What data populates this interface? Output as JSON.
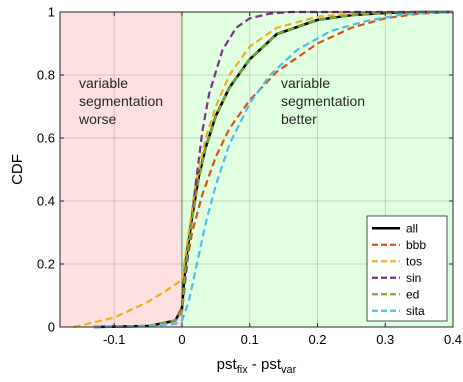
{
  "chart_data": {
    "type": "line",
    "xlabel": {
      "base1": "pst",
      "sub1": "fix",
      "sep": " - ",
      "base2": "pst",
      "sub2": "var"
    },
    "ylabel": "CDF",
    "xlim": [
      -0.18,
      0.4
    ],
    "ylim": [
      0,
      1
    ],
    "xticks": [
      {
        "value": -0.1,
        "label": "-0.1"
      },
      {
        "value": 0,
        "label": "0"
      },
      {
        "value": 0.1,
        "label": "0.1"
      },
      {
        "value": 0.2,
        "label": "0.2"
      },
      {
        "value": 0.3,
        "label": "0.3"
      },
      {
        "value": 0.4,
        "label": "0.4"
      }
    ],
    "yticks": [
      {
        "value": 0,
        "label": "0"
      },
      {
        "value": 0.2,
        "label": "0.2"
      },
      {
        "value": 0.4,
        "label": "0.4"
      },
      {
        "value": 0.6,
        "label": "0.6"
      },
      {
        "value": 0.8,
        "label": "0.8"
      },
      {
        "value": 1,
        "label": "1"
      }
    ],
    "grid": true,
    "legend_position": "bottom-right",
    "regions": [
      {
        "x0": -0.18,
        "x1": 0,
        "color": "#ffe0e0",
        "edge": "#c05050",
        "label": [
          "variable",
          "segmentation",
          "worse"
        ],
        "anchor": "left"
      },
      {
        "x0": 0,
        "x1": 0.4,
        "color": "#e0ffe0",
        "edge": "#60b060",
        "label": [
          "variable",
          "segmentation",
          "better"
        ],
        "anchor": "right"
      }
    ],
    "series": [
      {
        "name": "all",
        "color": "#000000",
        "dash": "solid",
        "x": [
          -0.13,
          -0.05,
          -0.01,
          0.0,
          0.005,
          0.015,
          0.025,
          0.035,
          0.05,
          0.07,
          0.1,
          0.14,
          0.2,
          0.25,
          0.3,
          0.35,
          0.4
        ],
        "y": [
          0,
          0.003,
          0.02,
          0.06,
          0.2,
          0.35,
          0.48,
          0.57,
          0.67,
          0.76,
          0.85,
          0.93,
          0.975,
          0.99,
          0.997,
          1,
          1
        ]
      },
      {
        "name": "bbb",
        "color": "#d95319",
        "dash": "dashed",
        "x": [
          -0.13,
          -0.05,
          -0.01,
          0.0,
          0.005,
          0.015,
          0.03,
          0.05,
          0.07,
          0.1,
          0.14,
          0.2,
          0.25,
          0.3,
          0.35,
          0.4
        ],
        "y": [
          0,
          0.003,
          0.02,
          0.06,
          0.18,
          0.3,
          0.42,
          0.54,
          0.63,
          0.72,
          0.81,
          0.9,
          0.95,
          0.98,
          0.995,
          1
        ]
      },
      {
        "name": "tos",
        "color": "#edb120",
        "dash": "dashed",
        "x": [
          -0.16,
          -0.1,
          -0.05,
          -0.02,
          0.0,
          0.01,
          0.02,
          0.035,
          0.05,
          0.07,
          0.1,
          0.14,
          0.2,
          0.25,
          0.3,
          0.4
        ],
        "y": [
          0,
          0.03,
          0.08,
          0.12,
          0.15,
          0.3,
          0.45,
          0.6,
          0.7,
          0.8,
          0.89,
          0.95,
          0.985,
          0.995,
          1,
          1
        ]
      },
      {
        "name": "sin",
        "color": "#7e2f8e",
        "dash": "dashed",
        "x": [
          -0.13,
          -0.05,
          -0.01,
          0.0,
          0.01,
          0.02,
          0.03,
          0.04,
          0.06,
          0.08,
          0.1,
          0.13,
          0.16,
          0.2,
          0.25,
          0.4
        ],
        "y": [
          0,
          0.003,
          0.02,
          0.05,
          0.25,
          0.45,
          0.62,
          0.74,
          0.88,
          0.95,
          0.98,
          0.995,
          1,
          1,
          1,
          1
        ]
      },
      {
        "name": "ed",
        "color": "#77ac30",
        "dash": "dashed",
        "x": [
          -0.13,
          -0.05,
          -0.01,
          0.0,
          0.005,
          0.015,
          0.025,
          0.035,
          0.05,
          0.07,
          0.1,
          0.14,
          0.2,
          0.25,
          0.3,
          0.35,
          0.4
        ],
        "y": [
          0,
          0.003,
          0.02,
          0.05,
          0.19,
          0.34,
          0.47,
          0.57,
          0.67,
          0.76,
          0.85,
          0.93,
          0.975,
          0.99,
          0.997,
          1,
          1
        ]
      },
      {
        "name": "sita",
        "color": "#4dbeee",
        "dash": "dashed",
        "x": [
          -0.13,
          -0.05,
          -0.01,
          0.0,
          0.01,
          0.02,
          0.035,
          0.05,
          0.07,
          0.1,
          0.13,
          0.17,
          0.22,
          0.27,
          0.32,
          0.37,
          0.4
        ],
        "y": [
          0,
          0.003,
          0.01,
          0.02,
          0.08,
          0.18,
          0.33,
          0.45,
          0.58,
          0.71,
          0.8,
          0.88,
          0.94,
          0.97,
          0.99,
          1,
          1
        ]
      }
    ]
  }
}
